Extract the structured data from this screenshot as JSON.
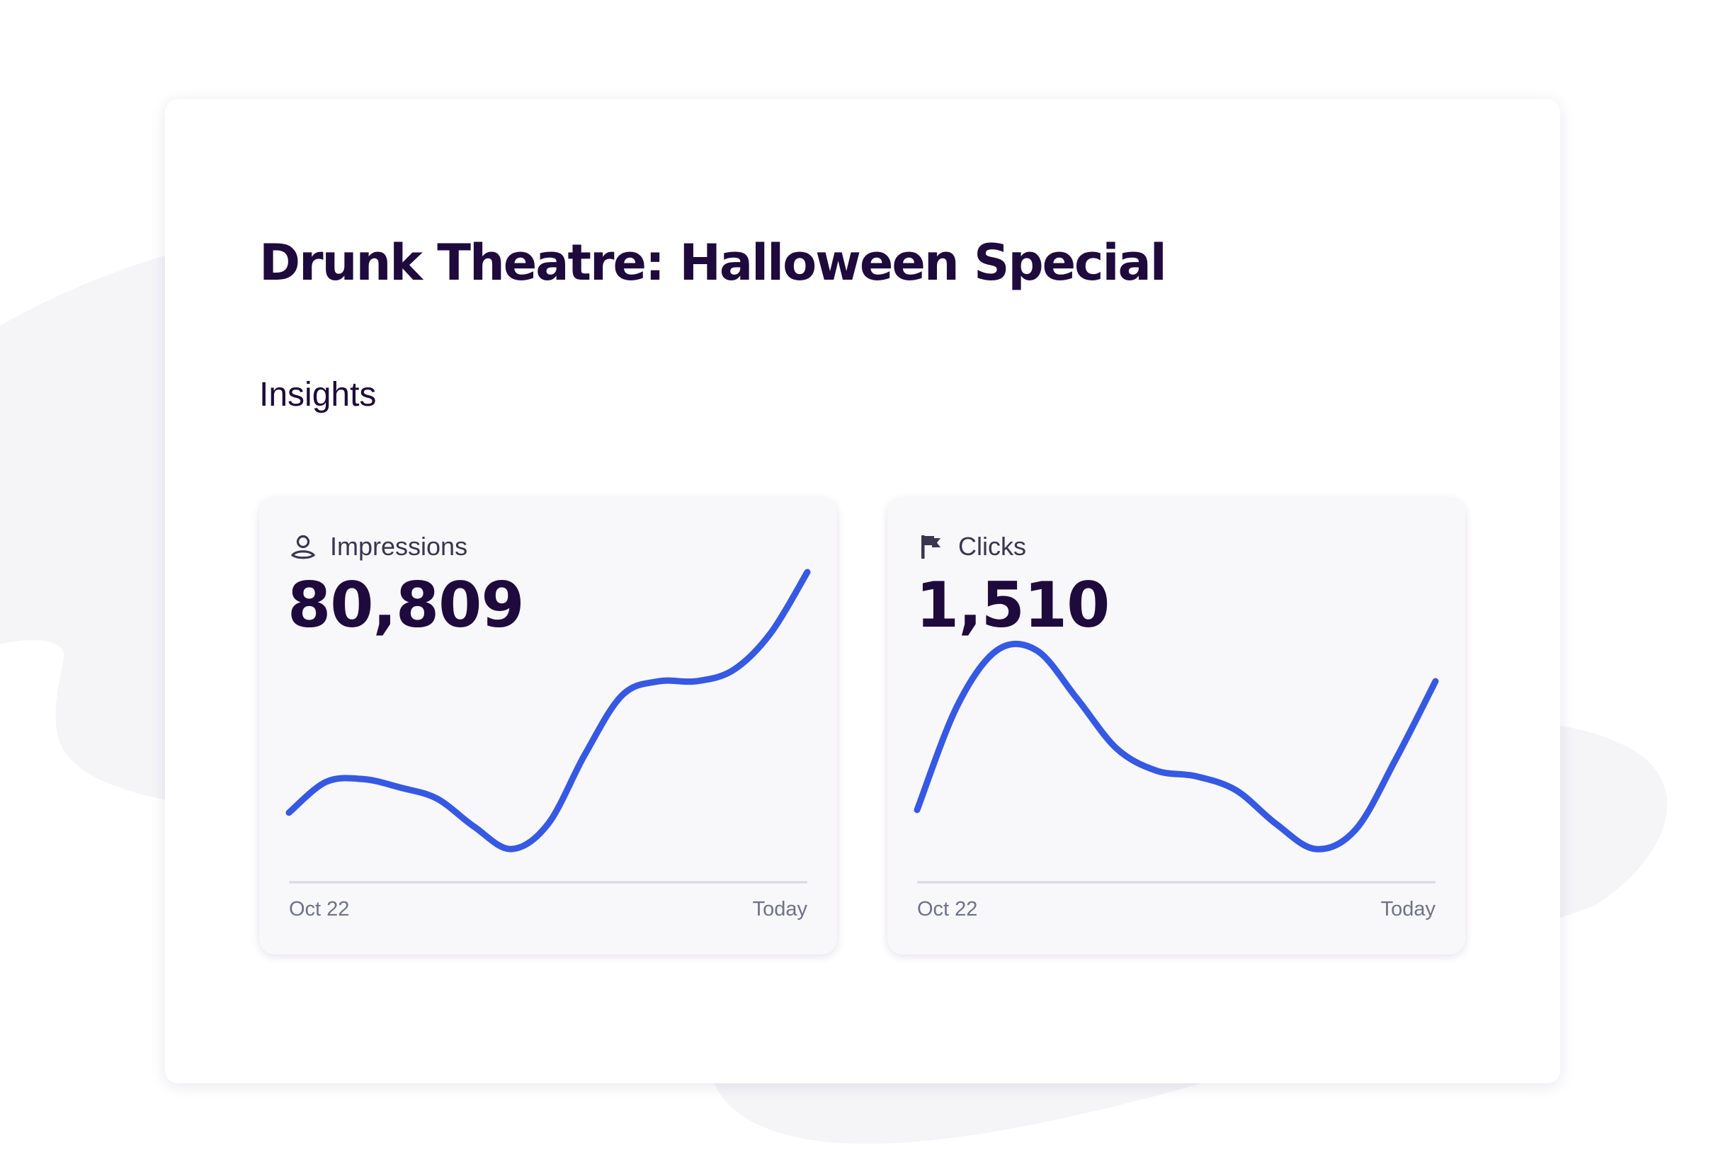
{
  "event": {
    "title": "Drunk Theatre: Halloween Special",
    "section_title": "Insights"
  },
  "colors": {
    "title_text": "#1e0a3c",
    "line": "#3659e3",
    "card_background": "#f8f7fa",
    "axis_text": "#6f7287",
    "page_blob": "#f5f5f8"
  },
  "metrics": [
    {
      "label": "Impressions",
      "icon": "person-icon",
      "value": "80,809",
      "axis_start": "Oct 22",
      "axis_end": "Today"
    },
    {
      "label": "Clicks",
      "icon": "flag-icon",
      "value": "1,510",
      "axis_start": "Oct 22",
      "axis_end": "Today"
    }
  ],
  "chart_data": [
    {
      "type": "line",
      "x_range_labels": [
        "Oct 22",
        "Today"
      ],
      "series": [
        {
          "values": [
            0.14,
            0.25,
            0.26,
            0.23,
            0.19,
            0.09,
            0.01,
            0.1,
            0.35,
            0.56,
            0.61,
            0.61,
            0.65,
            0.78,
            1.0
          ]
        }
      ],
      "ylim": [
        0,
        1
      ],
      "grid": false
    },
    {
      "type": "line",
      "x_range_labels": [
        "Oct 22",
        "Today"
      ],
      "series": [
        {
          "values": [
            0.15,
            0.52,
            0.72,
            0.72,
            0.55,
            0.37,
            0.29,
            0.27,
            0.22,
            0.1,
            0.01,
            0.08,
            0.33,
            0.61
          ]
        }
      ],
      "ylim": [
        0,
        1
      ],
      "grid": false
    }
  ]
}
